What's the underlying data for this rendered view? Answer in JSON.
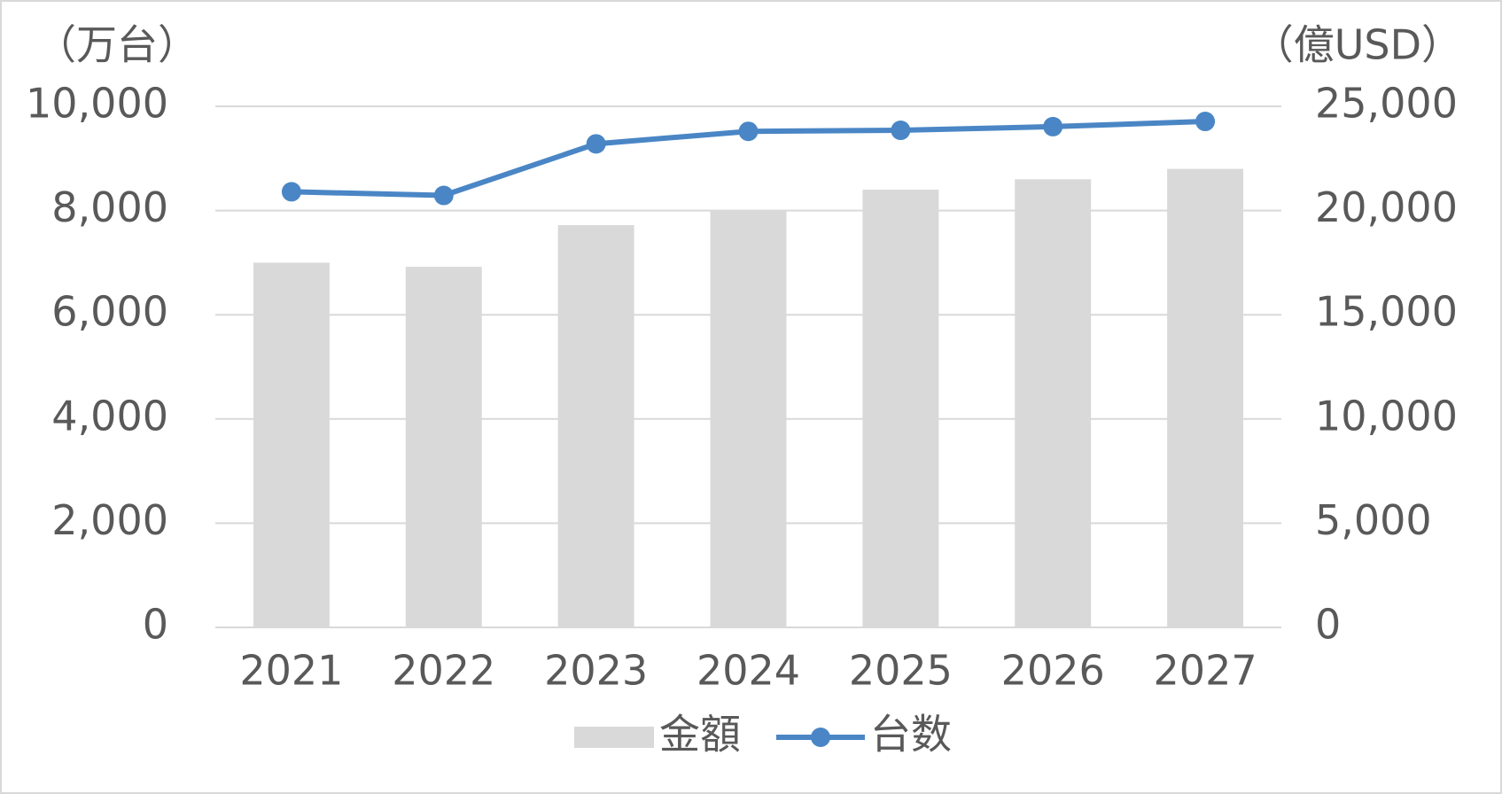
{
  "chart_data": {
    "type": "combo",
    "ylabel": "（万台）",
    "y2label": "（億USD）",
    "categories": [
      "2021",
      "2022",
      "2023",
      "2024",
      "2025",
      "2026",
      "2027"
    ],
    "series": [
      {
        "name": "金額",
        "type": "bar",
        "axis": "y2",
        "color": "#d9d9d9",
        "values": [
          17500,
          17300,
          19300,
          20000,
          21000,
          21500,
          22000
        ]
      },
      {
        "name": "台数",
        "type": "line",
        "color": "#4a86c5",
        "values": [
          8360,
          8290,
          9280,
          9520,
          9540,
          9610,
          9710
        ]
      }
    ],
    "ylim": [
      0,
      10000
    ],
    "yticks": [
      0,
      {
        "value": 2000,
        "label": "2,000"
      },
      {
        "value": 4000,
        "label": "4,000"
      },
      {
        "value": 6000,
        "label": "6,000"
      },
      {
        "value": 8000,
        "label": "8,000"
      },
      {
        "value": 10000,
        "label": "10,000"
      }
    ],
    "y2lim": [
      0,
      25000
    ],
    "y2ticks": [
      0,
      {
        "value": 5000,
        "label": "5,000"
      },
      {
        "value": 10000,
        "label": "10,000"
      },
      {
        "value": 15000,
        "label": "15,000"
      },
      {
        "value": 20000,
        "label": "20,000"
      },
      {
        "value": 25000,
        "label": "25,000"
      }
    ],
    "grid": true
  }
}
